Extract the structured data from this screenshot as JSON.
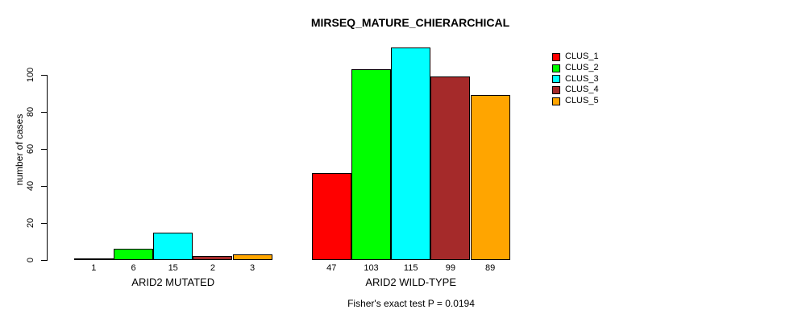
{
  "chart_data": {
    "type": "bar",
    "title": "MIRSEQ_MATURE_CHIERARCHICAL",
    "xlabel": "",
    "ylabel": "number of cases",
    "annotation": "Fisher's exact test P = 0.0194",
    "categories": [
      "ARID2 MUTATED",
      "ARID2 WILD-TYPE"
    ],
    "series": [
      {
        "name": "CLUS_1",
        "color": "#FF0000",
        "values": [
          1,
          47
        ]
      },
      {
        "name": "CLUS_2",
        "color": "#00FF00",
        "values": [
          6,
          103
        ]
      },
      {
        "name": "CLUS_3",
        "color": "#00FFFF",
        "values": [
          15,
          115
        ]
      },
      {
        "name": "CLUS_4",
        "color": "#A52A2A",
        "values": [
          2,
          99
        ]
      },
      {
        "name": "CLUS_5",
        "color": "#FFA500",
        "values": [
          3,
          89
        ]
      }
    ],
    "bar_labels": [
      [
        1,
        6,
        15,
        2,
        3
      ],
      [
        47,
        103,
        115,
        99,
        89
      ]
    ],
    "yticks": [
      0,
      20,
      40,
      60,
      80,
      100
    ],
    "ylim": [
      0,
      115
    ],
    "grid": false,
    "legend_position": "right",
    "axis_color": "#000000",
    "bar_border_color": "#000000"
  }
}
